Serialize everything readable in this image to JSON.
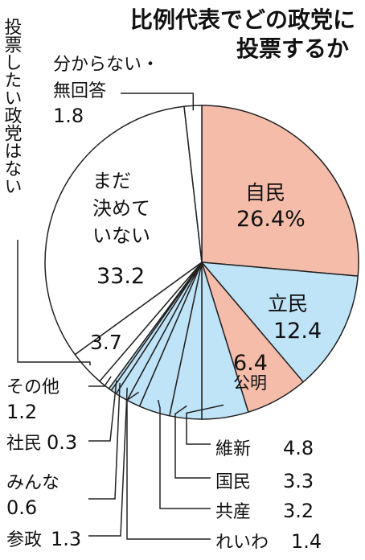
{
  "title_lines": [
    "比例代表でどの政党に",
    "投票するか"
  ],
  "chart_data": {
    "type": "pie",
    "title": "比例代表でどの政党に投票するか",
    "start": "12 o'clock, clockwise",
    "slices": [
      {
        "label": "自民",
        "value": 26.4,
        "value_text": "26.4%",
        "color": "#f5bcaa"
      },
      {
        "label": "立民",
        "value": 12.4,
        "value_text": "12.4",
        "color": "#bfe3f7"
      },
      {
        "label": "公明",
        "value": 6.4,
        "value_text": "6.4",
        "color": "#f5bcaa"
      },
      {
        "label": "維新",
        "value": 4.8,
        "value_text": "4.8",
        "color": "#bfe3f7"
      },
      {
        "label": "国民",
        "value": 3.3,
        "value_text": "3.3",
        "color": "#bfe3f7"
      },
      {
        "label": "共産",
        "value": 3.2,
        "value_text": "3.2",
        "color": "#bfe3f7"
      },
      {
        "label": "れいわ",
        "value": 1.4,
        "value_text": "1.4",
        "color": "#bfe3f7"
      },
      {
        "label": "参政",
        "value": 1.3,
        "value_text": "1.3",
        "color": "#bfe3f7"
      },
      {
        "label": "みんな",
        "value": 0.6,
        "value_text": "0.6",
        "color": "#bfe3f7"
      },
      {
        "label": "社民",
        "value": 0.3,
        "value_text": "0.3",
        "color": "#bfe3f7"
      },
      {
        "label": "その他",
        "value": 1.2,
        "value_text": "1.2",
        "color": "#ffffff"
      },
      {
        "label": "投票したい政党はない",
        "value": 3.7,
        "value_text": "3.7",
        "color": "#ffffff"
      },
      {
        "label": "まだ決めていない",
        "value": 33.2,
        "value_text": "33.2",
        "color": "#ffffff"
      },
      {
        "label": "分からない・無回答",
        "value": 1.8,
        "value_text": "1.8",
        "color": "#ffffff"
      }
    ]
  },
  "labels": {
    "jimin_name": "自民",
    "jimin_val": "26.4%",
    "rikken_name": "立民",
    "rikken_val": "12.4",
    "komei_val": "6.4",
    "komei_name": "公明",
    "undecided_l1": "まだ",
    "undecided_l2": "決めて",
    "undecided_l3": "いない",
    "undecided_val": "33.2",
    "nothing_val": "3.7",
    "nothing_name": "投票したい政党はない",
    "dk_l1": "分からない・",
    "dk_l2": "無回答",
    "dk_val": "1.8",
    "other_name": "その他",
    "other_val": "1.2",
    "shamin_name": "社民",
    "shamin_val": "0.3",
    "minna_name": "みんな",
    "minna_val": "0.6",
    "sansei_name": "参政",
    "sansei_val": "1.3",
    "ishin_name": "維新",
    "ishin_val": "4.8",
    "kokumin_name": "国民",
    "kokumin_val": "3.3",
    "kyosan_name": "共産",
    "kyosan_val": "3.2",
    "reiwa_name": "れいわ",
    "reiwa_val": "1.4"
  }
}
